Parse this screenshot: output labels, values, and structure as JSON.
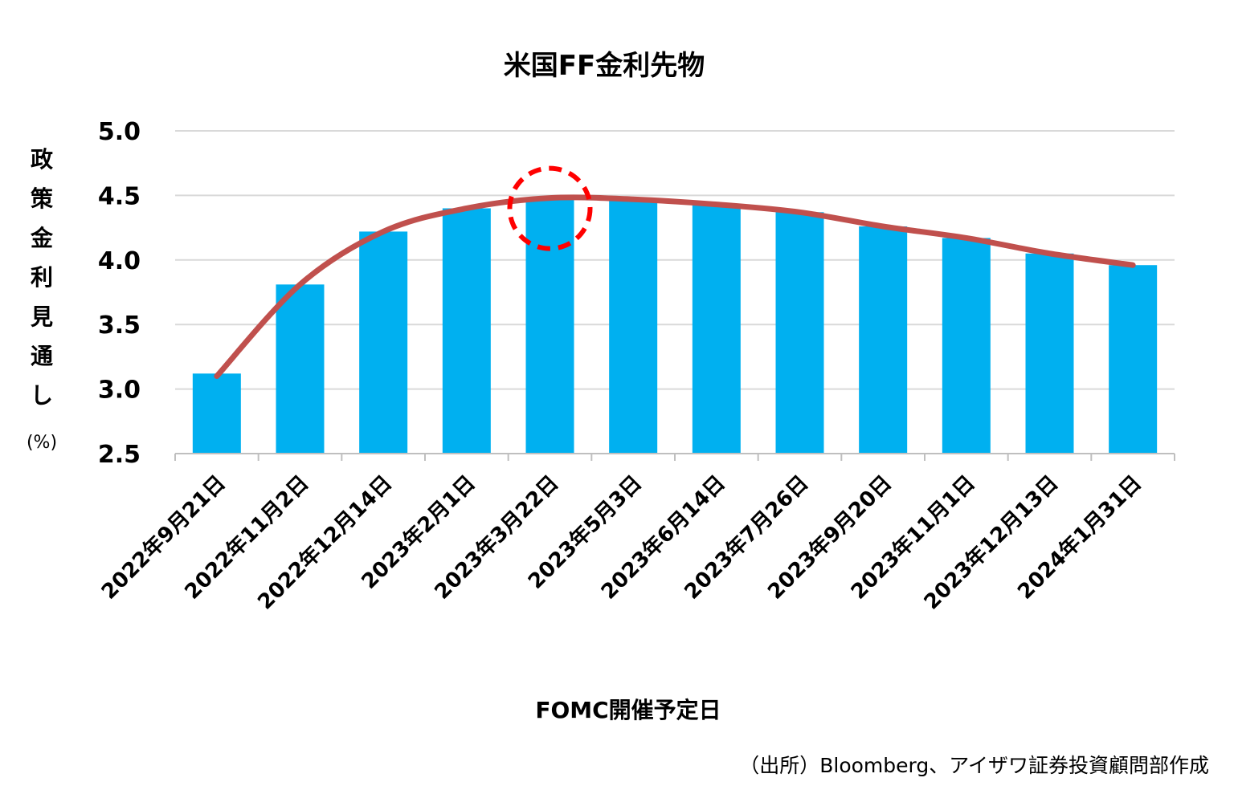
{
  "chart_data": {
    "type": "bar",
    "title": "米国FF金利先物",
    "xlabel": "FOMC開催予定日",
    "ylabel": "政策金利見通し",
    "yunit": "(%)",
    "ylim": [
      2.5,
      5.0
    ],
    "yticks": [
      "2.5",
      "3.0",
      "3.5",
      "4.0",
      "4.5",
      "5.0"
    ],
    "grid": true,
    "categories": [
      "2022年9月21日",
      "2022年11月2日",
      "2022年12月14日",
      "2023年2月1日",
      "2023年3月22日",
      "2023年5月3日",
      "2023年6月14日",
      "2023年7月26日",
      "2023年9月20日",
      "2023年11月1日",
      "2023年12月13日",
      "2024年1月31日"
    ],
    "values": [
      3.12,
      3.81,
      4.22,
      4.4,
      4.48,
      4.47,
      4.43,
      4.37,
      4.26,
      4.17,
      4.05,
      3.96
    ],
    "line_values": [
      3.1,
      3.81,
      4.22,
      4.4,
      4.48,
      4.47,
      4.43,
      4.37,
      4.26,
      4.17,
      4.05,
      3.96
    ],
    "highlight_index": 4,
    "source": "（出所）Bloomberg、アイザワ証券投資顧問部作成"
  },
  "colors": {
    "bar": "#00b0f0",
    "line": "#c0504d",
    "highlight": "#ff0000",
    "grid": "#d9d9d9",
    "axis": "#bfbfbf"
  }
}
